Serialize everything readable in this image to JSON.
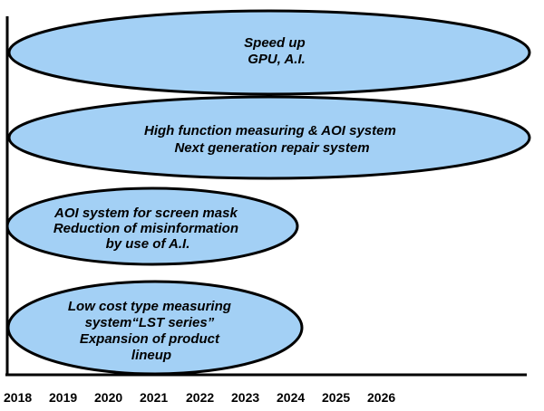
{
  "axis": {
    "years": [
      "2018",
      "2019",
      "2020",
      "2021",
      "2022",
      "2023",
      "2024",
      "2025",
      "2026"
    ]
  },
  "roadmap": [
    {
      "lines": [
        "Speed up",
        "GPU, A.I."
      ]
    },
    {
      "lines": [
        "High function measuring & AOI system",
        "Next generation repair system"
      ]
    },
    {
      "lines": [
        "AOI system for screen mask",
        "Reduction of misinformation",
        "by use of A.I."
      ]
    },
    {
      "lines": [
        "Low cost type measuring",
        "system“LST series”",
        "Expansion of product",
        "lineup"
      ]
    }
  ],
  "colors": {
    "ellipse_fill": "#a3d0f5",
    "outline": "#000000"
  }
}
